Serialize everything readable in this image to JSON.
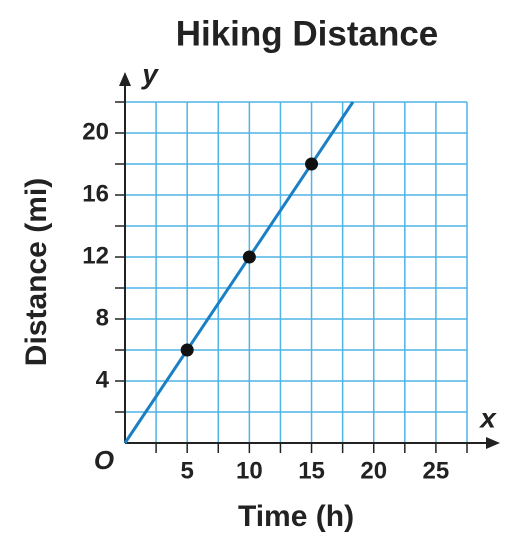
{
  "chart_data": {
    "type": "line",
    "title": "Hiking Distance",
    "x_label": "Time (h)",
    "y_label": "Distance (mi)",
    "origin_label": "O",
    "x_axis_name": "x",
    "y_axis_name": "y",
    "xlim": [
      0,
      27.5
    ],
    "ylim": [
      0,
      22
    ],
    "xticks": [
      5,
      10,
      15,
      20,
      25
    ],
    "yticks": [
      4,
      8,
      12,
      16,
      20
    ],
    "xgrid": [
      2.5,
      5,
      7.5,
      10,
      12.5,
      15,
      17.5,
      20,
      22.5,
      25,
      27.5
    ],
    "ygrid": [
      2,
      4,
      6,
      8,
      10,
      12,
      14,
      16,
      18,
      20,
      22
    ],
    "grid": true,
    "grid_color": "#4fb4e6",
    "series": [
      {
        "x": [
          0,
          18.33
        ],
        "values": [
          0,
          22
        ],
        "color": "#1b7fc4"
      },
      {
        "x": [
          5,
          10,
          15
        ],
        "values": [
          6,
          12,
          18
        ],
        "color": "#111111",
        "markers": true
      }
    ]
  }
}
